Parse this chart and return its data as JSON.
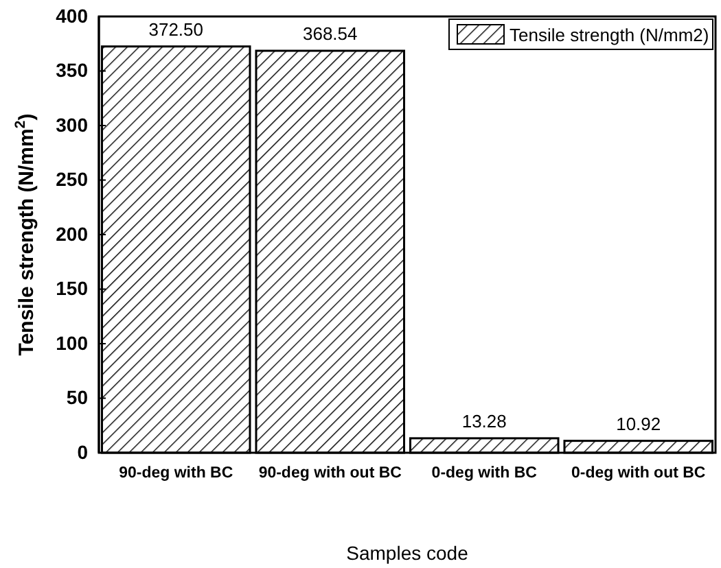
{
  "chart_data": {
    "type": "bar",
    "xlabel": "Samples code",
    "ylabel": "Tensile strength (N/mm$^{2}$)",
    "categories": [
      "90-deg with BC",
      "90-deg with out BC",
      "0-deg with BC",
      "0-deg with out BC"
    ],
    "series": [
      {
        "name": "Tensile strength (N/mm2)",
        "color": "#000000",
        "values": [
          372.5,
          368.54,
          13.28,
          10.92
        ],
        "value_labels": [
          "372.50",
          "368.54",
          "13.28",
          "10.92"
        ]
      }
    ],
    "ylim": [
      0,
      400
    ],
    "yticks": [
      0,
      50,
      100,
      150,
      200,
      250,
      300,
      350,
      400
    ],
    "legend": "top right"
  }
}
